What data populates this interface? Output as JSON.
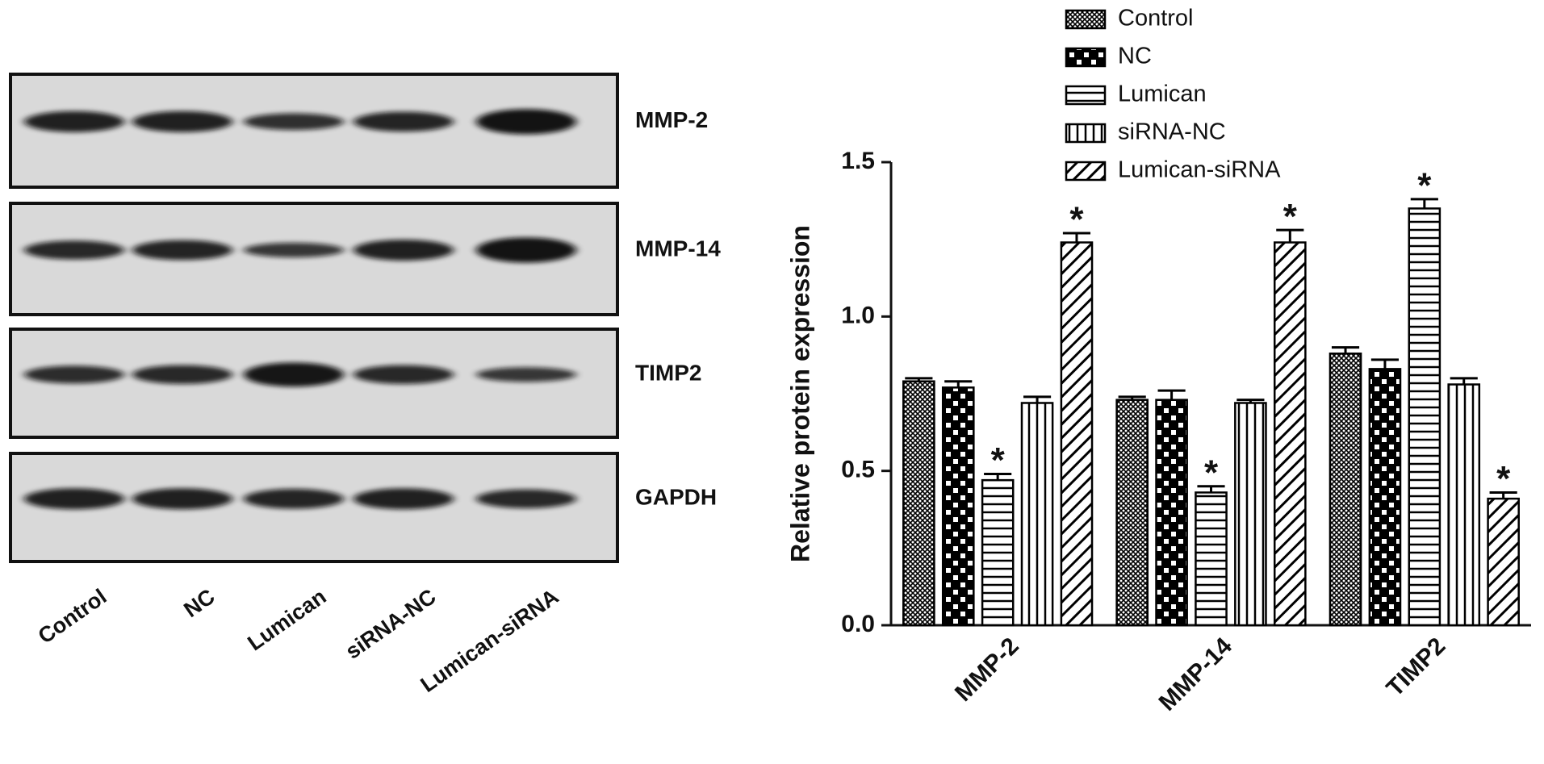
{
  "blot": {
    "rows": [
      "MMP-2",
      "MMP-14",
      "TIMP2",
      "GAPDH"
    ],
    "lanes": [
      "Control",
      "NC",
      "Lumican",
      "siRNA-NC",
      "Lumican-siRNA"
    ]
  },
  "chart_data": {
    "type": "bar",
    "y_label": "Relative protein expression",
    "categories": [
      "MMP-2",
      "MMP-14",
      "TIMP2"
    ],
    "series": [
      {
        "name": "Control",
        "color": "#000000",
        "pattern": "crosshatch",
        "values": [
          0.79,
          0.73,
          0.88
        ],
        "errors": [
          0.01,
          0.01,
          0.02
        ],
        "significance": [
          null,
          null,
          null
        ]
      },
      {
        "name": "NC",
        "color": "#000000",
        "pattern": "checker",
        "values": [
          0.77,
          0.73,
          0.83
        ],
        "errors": [
          0.02,
          0.03,
          0.03
        ],
        "significance": [
          null,
          null,
          null
        ]
      },
      {
        "name": "Lumican",
        "color": "#000000",
        "pattern": "horizontal",
        "values": [
          0.47,
          0.43,
          1.35
        ],
        "errors": [
          0.02,
          0.02,
          0.03
        ],
        "significance": [
          "*",
          "*",
          "*"
        ]
      },
      {
        "name": "siRNA-NC",
        "color": "#000000",
        "pattern": "vertical",
        "values": [
          0.72,
          0.72,
          0.78
        ],
        "errors": [
          0.02,
          0.01,
          0.02
        ],
        "significance": [
          null,
          null,
          null
        ]
      },
      {
        "name": "Lumican-siRNA",
        "color": "#000000",
        "pattern": "diagonal",
        "values": [
          1.24,
          1.24,
          0.41
        ],
        "errors": [
          0.03,
          0.04,
          0.02
        ],
        "significance": [
          "*",
          "*",
          "*"
        ]
      }
    ],
    "ylim": [
      0,
      1.5
    ],
    "yticks": [
      {
        "value": 0,
        "label": "0.0"
      },
      0.5,
      {
        "value": 1,
        "label": "1.0"
      },
      1.5
    ]
  }
}
